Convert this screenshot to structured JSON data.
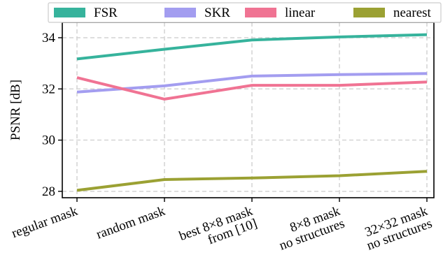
{
  "chart_data": {
    "type": "line",
    "ylabel": "PSNR [dB]",
    "xlabel": "",
    "ylim": [
      27.75,
      34.6
    ],
    "yticks": [
      "28",
      "30",
      "32",
      "34"
    ],
    "ytick_values": [
      28,
      30,
      32,
      34
    ],
    "categories": [
      [
        "regular mask"
      ],
      [
        "random mask"
      ],
      [
        "best 8×8 mask",
        "from [10]"
      ],
      [
        "8×8 mask",
        "no structures"
      ],
      [
        "32×32 mask",
        "no structures"
      ]
    ],
    "series": [
      {
        "name": "FSR",
        "color": "#36b39c",
        "values": [
          33.17,
          33.55,
          33.91,
          34.03,
          34.12
        ]
      },
      {
        "name": "SKR",
        "color": "#a39df0",
        "values": [
          31.88,
          32.12,
          32.5,
          32.56,
          32.6
        ]
      },
      {
        "name": "linear",
        "color": "#f07393",
        "values": [
          32.44,
          31.6,
          32.14,
          32.14,
          32.27
        ]
      },
      {
        "name": "nearest",
        "color": "#9ba133",
        "values": [
          28.04,
          28.46,
          28.52,
          28.61,
          28.78
        ]
      }
    ],
    "grid": true,
    "legend_position": "top"
  }
}
